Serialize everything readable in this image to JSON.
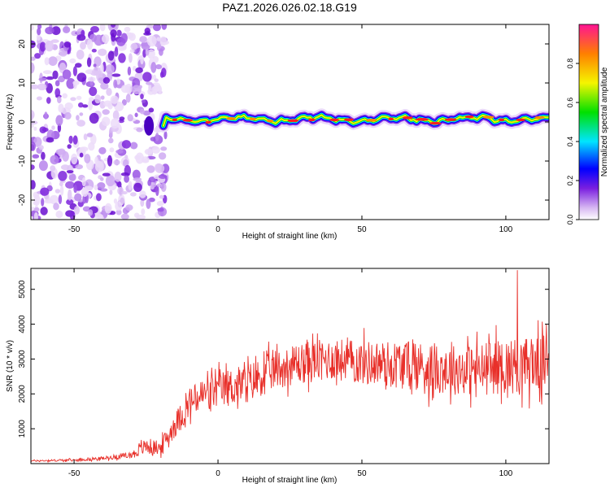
{
  "figure_title": "PAZ1.2026.026.02.18.G19",
  "chart_data": [
    {
      "type": "heatmap",
      "title": "PAZ1.2026.026.02.18.G19",
      "xlabel": "Height of straight line (km)",
      "ylabel": "Frequency (Hz)",
      "xlim": [
        -65,
        115
      ],
      "ylim": [
        -25,
        25
      ],
      "xticks": [
        -50,
        0,
        50,
        100
      ],
      "yticks": [
        20,
        10,
        0,
        -10,
        -20
      ],
      "colorbar": {
        "label": "Normalized spectral amplitude",
        "range": [
          0,
          1
        ],
        "ticks": [
          0.0,
          0.2,
          0.4,
          0.6,
          0.8
        ]
      },
      "signal_track": {
        "x_start": -18,
        "x_end": 115,
        "center_frequency": 0.7,
        "description_values": {
          "frequency_spread_noise_region": [
            -25,
            25
          ],
          "noise_region_x": [
            -65,
            -18
          ]
        }
      }
    },
    {
      "type": "line",
      "xlabel": "Height of straight line (km)",
      "ylabel": "SNR (10 * v/v)",
      "xlim": [
        -65,
        115
      ],
      "ylim": [
        0,
        5600
      ],
      "xticks": [
        -50,
        0,
        50,
        100
      ],
      "yticks": [
        1000,
        2000,
        3000,
        4000,
        5000
      ],
      "series": [
        {
          "name": "SNR",
          "color": "#e8302a",
          "envelope": {
            "x": [
              -65,
              -50,
              -40,
              -30,
              -25,
              -20,
              -15,
              -10,
              -5,
              0,
              5,
              10,
              15,
              20,
              25,
              30,
              40,
              50,
              60,
              70,
              80,
              90,
              100,
              110,
              115
            ],
            "mean": [
              80,
              100,
              150,
              250,
              500,
              450,
              1100,
              1700,
              2000,
              2100,
              2200,
              2300,
              2500,
              2700,
              2800,
              2900,
              3000,
              2900,
              2850,
              2800,
              2700,
              2700,
              2800,
              2850,
              2900
            ],
            "amplitude": [
              30,
              40,
              60,
              120,
              300,
              250,
              450,
              550,
              600,
              650,
              700,
              700,
              700,
              700,
              700,
              750,
              750,
              800,
              850,
              900,
              900,
              950,
              1000,
              1000,
              1000
            ]
          },
          "peak": {
            "x": 104,
            "y": 5550
          }
        }
      ]
    }
  ]
}
